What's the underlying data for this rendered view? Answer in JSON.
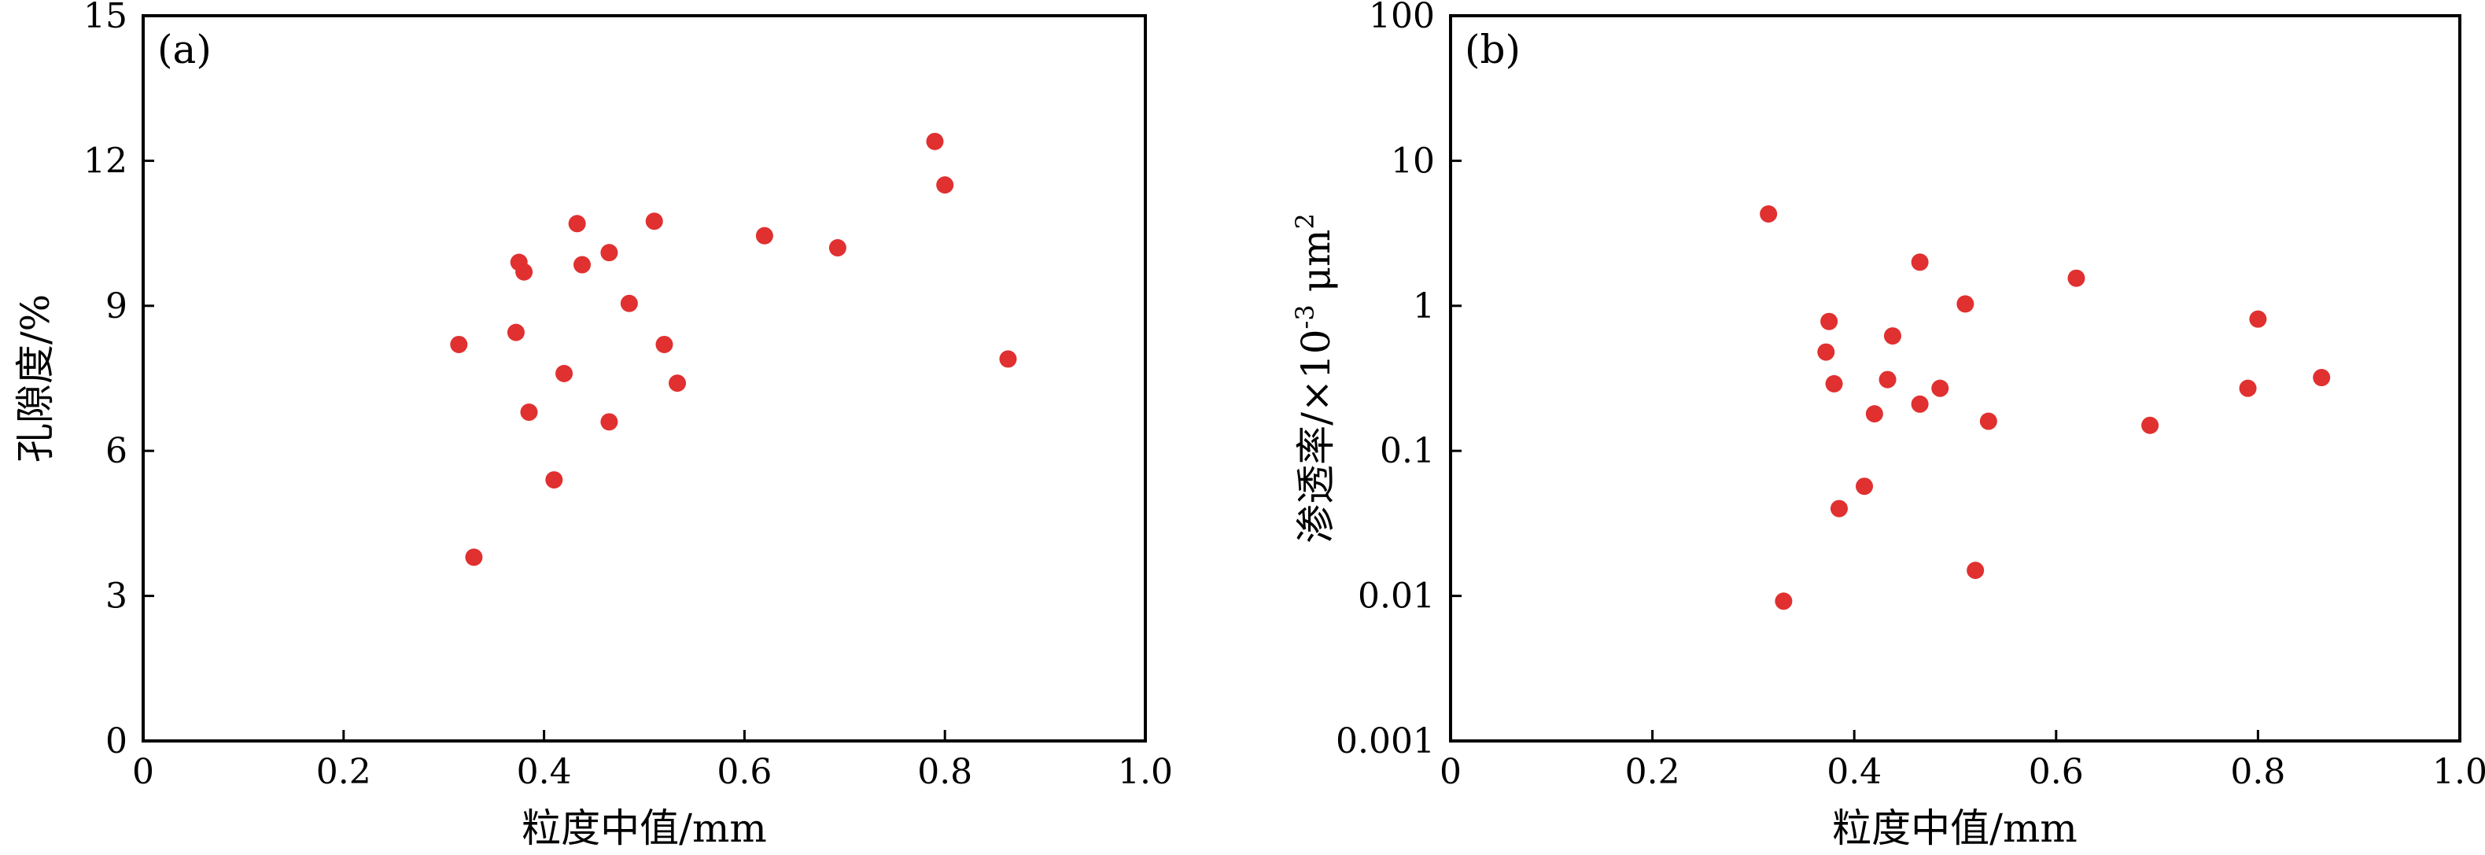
{
  "chart_data": [
    {
      "type": "scatter",
      "panel_label": "(a)",
      "xlabel": "粒度中值/mm",
      "ylabel": "孔隙度/%",
      "xlim": [
        0,
        1.0
      ],
      "ylim": [
        0,
        15
      ],
      "yscale": "linear",
      "xticks": [
        0,
        0.2,
        0.4,
        0.6,
        0.8,
        1.0
      ],
      "xtick_labels": [
        "0",
        "0.2",
        "0.4",
        "0.6",
        "0.8",
        "1.0"
      ],
      "yticks": [
        0,
        3,
        6,
        9,
        12,
        15
      ],
      "ytick_labels": [
        "0",
        "3",
        "6",
        "9",
        "12",
        "15"
      ],
      "grid": false,
      "marker_color": "#e03030",
      "points": [
        {
          "x": 0.315,
          "y": 8.2
        },
        {
          "x": 0.33,
          "y": 3.8
        },
        {
          "x": 0.372,
          "y": 8.45
        },
        {
          "x": 0.375,
          "y": 9.9
        },
        {
          "x": 0.38,
          "y": 9.7
        },
        {
          "x": 0.385,
          "y": 6.8
        },
        {
          "x": 0.41,
          "y": 5.4
        },
        {
          "x": 0.42,
          "y": 7.6
        },
        {
          "x": 0.433,
          "y": 10.7
        },
        {
          "x": 0.438,
          "y": 9.85
        },
        {
          "x": 0.465,
          "y": 10.1
        },
        {
          "x": 0.465,
          "y": 6.6
        },
        {
          "x": 0.485,
          "y": 9.05
        },
        {
          "x": 0.51,
          "y": 10.75
        },
        {
          "x": 0.52,
          "y": 8.2
        },
        {
          "x": 0.533,
          "y": 7.4
        },
        {
          "x": 0.62,
          "y": 10.45
        },
        {
          "x": 0.693,
          "y": 10.2
        },
        {
          "x": 0.79,
          "y": 12.4
        },
        {
          "x": 0.8,
          "y": 11.5
        },
        {
          "x": 0.863,
          "y": 7.9
        }
      ]
    },
    {
      "type": "scatter",
      "panel_label": "(b)",
      "xlabel": "粒度中值/mm",
      "ylabel_main": "渗透率/×10",
      "ylabel_sup": "-3",
      "ylabel_unit": " μm",
      "ylabel_unit_sup": "2",
      "xlim": [
        0,
        1.0
      ],
      "ylim": [
        0.001,
        100
      ],
      "yscale": "log",
      "xticks": [
        0,
        0.2,
        0.4,
        0.6,
        0.8,
        1.0
      ],
      "xtick_labels": [
        "0",
        "0.2",
        "0.4",
        "0.6",
        "0.8",
        "1.0"
      ],
      "yticks": [
        0.001,
        0.01,
        0.1,
        1,
        10,
        100
      ],
      "ytick_labels": [
        "0.001",
        "0.01",
        "0.1",
        "1",
        "10",
        "100"
      ],
      "grid": false,
      "marker_color": "#e03030",
      "points": [
        {
          "x": 0.315,
          "y": 4.3
        },
        {
          "x": 0.33,
          "y": 0.0092
        },
        {
          "x": 0.372,
          "y": 0.48
        },
        {
          "x": 0.375,
          "y": 0.78
        },
        {
          "x": 0.38,
          "y": 0.29
        },
        {
          "x": 0.385,
          "y": 0.04
        },
        {
          "x": 0.41,
          "y": 0.057
        },
        {
          "x": 0.42,
          "y": 0.18
        },
        {
          "x": 0.433,
          "y": 0.31
        },
        {
          "x": 0.438,
          "y": 0.62
        },
        {
          "x": 0.465,
          "y": 2.0
        },
        {
          "x": 0.465,
          "y": 0.21
        },
        {
          "x": 0.485,
          "y": 0.27
        },
        {
          "x": 0.51,
          "y": 1.03
        },
        {
          "x": 0.52,
          "y": 0.015
        },
        {
          "x": 0.533,
          "y": 0.16
        },
        {
          "x": 0.62,
          "y": 1.55
        },
        {
          "x": 0.693,
          "y": 0.15
        },
        {
          "x": 0.79,
          "y": 0.27
        },
        {
          "x": 0.8,
          "y": 0.81
        },
        {
          "x": 0.863,
          "y": 0.32
        }
      ]
    }
  ]
}
